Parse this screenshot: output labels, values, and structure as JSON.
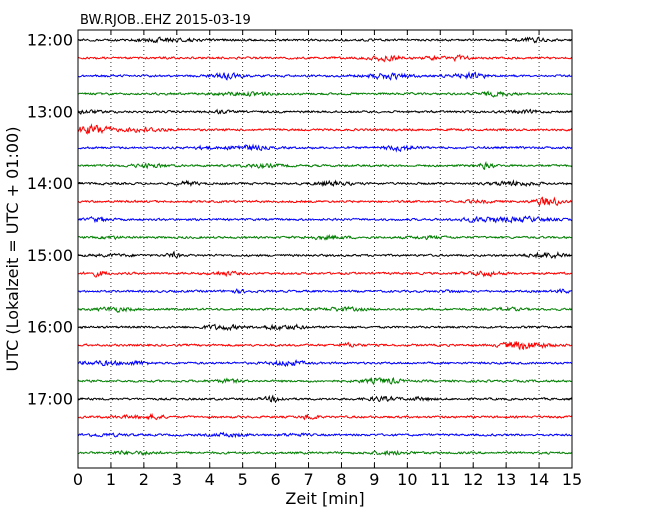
{
  "chart_data": {
    "type": "line",
    "title": "BW.RJOB..EHZ 2015-03-19",
    "xlabel": "Zeit  [min]",
    "ylabel": "UTC (Lokalzeit = UTC + 01:00)",
    "xlim": [
      0,
      15
    ],
    "x_ticks": [
      0,
      1,
      2,
      3,
      4,
      5,
      6,
      7,
      8,
      9,
      10,
      11,
      12,
      13,
      14,
      15
    ],
    "x_tick_labels": [
      "0",
      "1",
      "2",
      "3",
      "4",
      "5",
      "6",
      "7",
      "8",
      "9",
      "10",
      "11",
      "12",
      "13",
      "14",
      "15"
    ],
    "y_tick_labels": [
      "12:00",
      "13:00",
      "14:00",
      "15:00",
      "16:00",
      "17:00"
    ],
    "grid": "vertical dotted",
    "series_colors": [
      "#000000",
      "#ff0000",
      "#0000ff",
      "#007f00"
    ],
    "traces": [
      {
        "start": "12:00",
        "color": "#000000"
      },
      {
        "start": "12:15",
        "color": "#ff0000"
      },
      {
        "start": "12:30",
        "color": "#0000ff"
      },
      {
        "start": "12:45",
        "color": "#007f00"
      },
      {
        "start": "13:00",
        "color": "#000000"
      },
      {
        "start": "13:15",
        "color": "#ff0000"
      },
      {
        "start": "13:30",
        "color": "#0000ff"
      },
      {
        "start": "13:45",
        "color": "#007f00"
      },
      {
        "start": "14:00",
        "color": "#000000"
      },
      {
        "start": "14:15",
        "color": "#ff0000"
      },
      {
        "start": "14:30",
        "color": "#0000ff"
      },
      {
        "start": "14:45",
        "color": "#007f00"
      },
      {
        "start": "15:00",
        "color": "#000000"
      },
      {
        "start": "15:15",
        "color": "#ff0000"
      },
      {
        "start": "15:30",
        "color": "#0000ff"
      },
      {
        "start": "15:45",
        "color": "#007f00"
      },
      {
        "start": "16:00",
        "color": "#000000"
      },
      {
        "start": "16:15",
        "color": "#ff0000"
      },
      {
        "start": "16:30",
        "color": "#0000ff"
      },
      {
        "start": "16:45",
        "color": "#007f00"
      },
      {
        "start": "17:00",
        "color": "#000000"
      },
      {
        "start": "17:15",
        "color": "#ff0000"
      },
      {
        "start": "17:30",
        "color": "#0000ff"
      },
      {
        "start": "17:45",
        "color": "#007f00"
      }
    ]
  }
}
